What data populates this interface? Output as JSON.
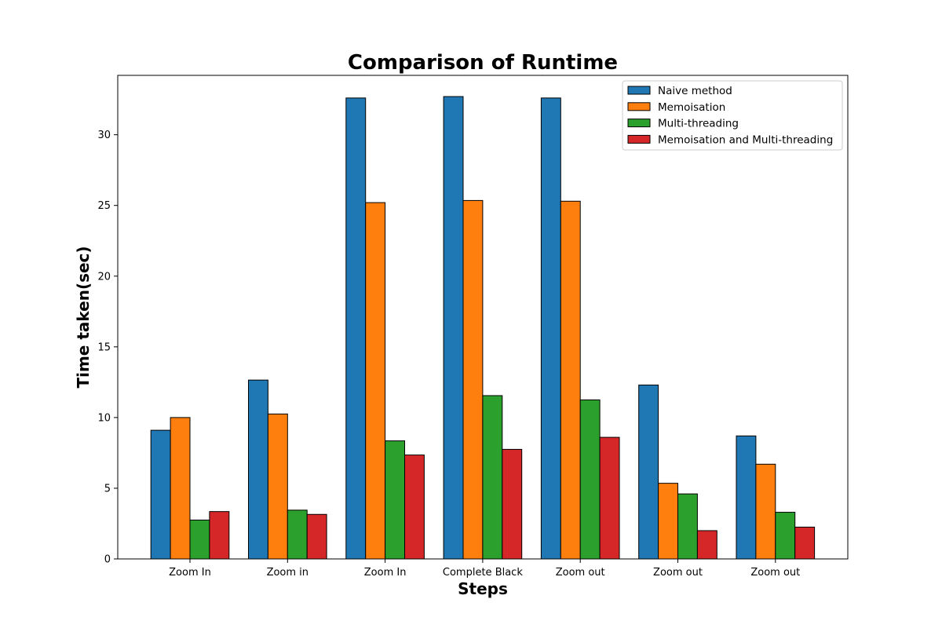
{
  "chart_data": {
    "type": "bar",
    "title": "Comparison of Runtime",
    "xlabel": "Steps",
    "ylabel": "Time taken(sec)",
    "categories": [
      "Zoom In",
      "Zoom in",
      "Zoom In",
      "Complete Black",
      "Zoom out",
      "Zoom out",
      "Zoom out"
    ],
    "ylim": [
      0,
      34.2
    ],
    "yticks": [
      0,
      5,
      10,
      15,
      20,
      25,
      30
    ],
    "grid": false,
    "legend_position": "top-right",
    "series": [
      {
        "name": "Naive method",
        "color": "#1f77b4",
        "values": [
          9.1,
          12.65,
          32.6,
          32.7,
          32.6,
          12.3,
          8.7
        ]
      },
      {
        "name": "Memoisation",
        "color": "#ff7f0e",
        "values": [
          10.0,
          10.25,
          25.2,
          25.35,
          25.3,
          5.35,
          6.7
        ]
      },
      {
        "name": "Multi-threading",
        "color": "#2ca02c",
        "values": [
          2.75,
          3.45,
          8.35,
          11.55,
          11.25,
          4.6,
          3.3
        ]
      },
      {
        "name": "Memoisation and Multi-threading",
        "color": "#d62728",
        "values": [
          3.35,
          3.15,
          7.35,
          7.75,
          8.6,
          2.0,
          2.25
        ]
      }
    ]
  }
}
